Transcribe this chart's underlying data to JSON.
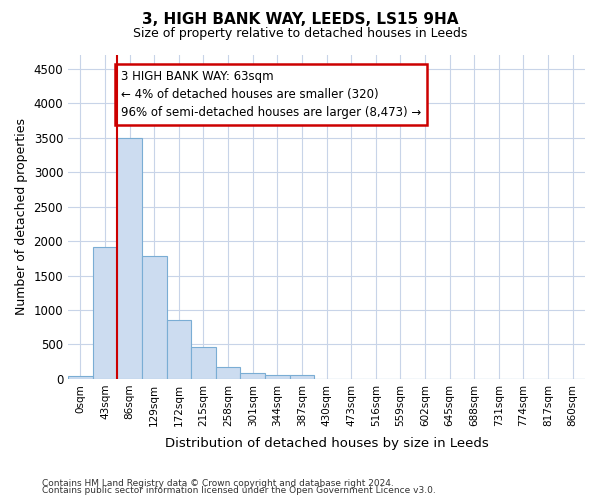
{
  "title_line1": "3, HIGH BANK WAY, LEEDS, LS15 9HA",
  "title_line2": "Size of property relative to detached houses in Leeds",
  "xlabel": "Distribution of detached houses by size in Leeds",
  "ylabel": "Number of detached properties",
  "bar_labels": [
    "0sqm",
    "43sqm",
    "86sqm",
    "129sqm",
    "172sqm",
    "215sqm",
    "258sqm",
    "301sqm",
    "344sqm",
    "387sqm",
    "430sqm",
    "473sqm",
    "516sqm",
    "559sqm",
    "602sqm",
    "645sqm",
    "688sqm",
    "731sqm",
    "774sqm",
    "817sqm",
    "860sqm"
  ],
  "bar_values": [
    40,
    1920,
    3500,
    1780,
    850,
    460,
    175,
    90,
    55,
    55,
    0,
    0,
    0,
    0,
    0,
    0,
    0,
    0,
    0,
    0,
    0
  ],
  "bar_color": "#ccdcf0",
  "bar_edgecolor": "#7aadd4",
  "vline_x": 1.5,
  "vline_color": "#cc0000",
  "annotation_text": "3 HIGH BANK WAY: 63sqm\n← 4% of detached houses are smaller (320)\n96% of semi-detached houses are larger (8,473) →",
  "annotation_box_color": "#ffffff",
  "annotation_box_edgecolor": "#cc0000",
  "ylim": [
    0,
    4700
  ],
  "yticks": [
    0,
    500,
    1000,
    1500,
    2000,
    2500,
    3000,
    3500,
    4000,
    4500
  ],
  "footer_line1": "Contains HM Land Registry data © Crown copyright and database right 2024.",
  "footer_line2": "Contains public sector information licensed under the Open Government Licence v3.0.",
  "bg_color": "#ffffff",
  "plot_bg_color": "#ffffff",
  "grid_color": "#c8d4e8"
}
